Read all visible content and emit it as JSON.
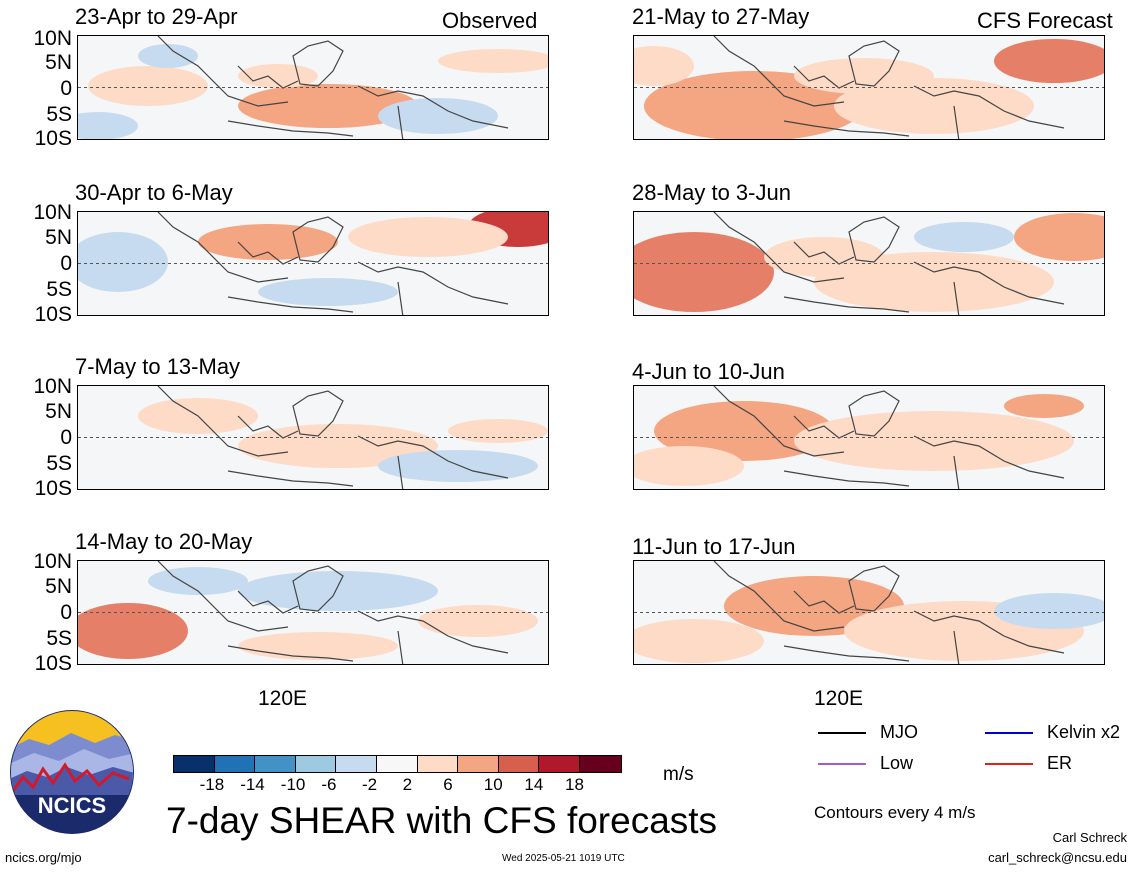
{
  "panels": [
    {
      "title": "23-Apr to 29-Apr",
      "corner": "Observed"
    },
    {
      "title": "21-May to 27-May",
      "corner": "CFS Forecast"
    },
    {
      "title": "30-Apr to 6-May",
      "corner": ""
    },
    {
      "title": "28-May to 3-Jun",
      "corner": ""
    },
    {
      "title": "7-May to 13-May",
      "corner": ""
    },
    {
      "title": "4-Jun to 10-Jun",
      "corner": ""
    },
    {
      "title": "14-May to 20-May",
      "corner": ""
    },
    {
      "title": "11-Jun to 17-Jun",
      "corner": ""
    }
  ],
  "lat_labels": [
    "10N",
    "5N",
    "0",
    "5S",
    "10S"
  ],
  "lon_label": "120E",
  "colorbar": {
    "colors": [
      "#08306b",
      "#2171b5",
      "#4292c6",
      "#9ecae1",
      "#c6dbef",
      "#f7f7f7",
      "#fddbc7",
      "#f4a582",
      "#d6604d",
      "#b2182b",
      "#67001f"
    ],
    "labels": [
      "-18",
      "-14",
      "-10",
      "-6",
      "-2",
      "2",
      "6",
      "10",
      "14",
      "18"
    ],
    "units": "m/s"
  },
  "title": "7-day SHEAR with CFS forecasts",
  "legend": [
    {
      "label": "MJO",
      "color": "#000000"
    },
    {
      "label": "Kelvin x2",
      "color": "#0000cc"
    },
    {
      "label": "Low",
      "color": "#a25ad6"
    },
    {
      "label": "ER",
      "color": "#e0201b"
    }
  ],
  "contour_note": "Contours every 4 m/s",
  "author": "Carl Schreck",
  "email": "carl_schreck@ncsu.edu",
  "site": "ncics.org/mjo",
  "timestamp": "Wed 2025-05-21 1019 UTC",
  "logo_text": "NCICS"
}
